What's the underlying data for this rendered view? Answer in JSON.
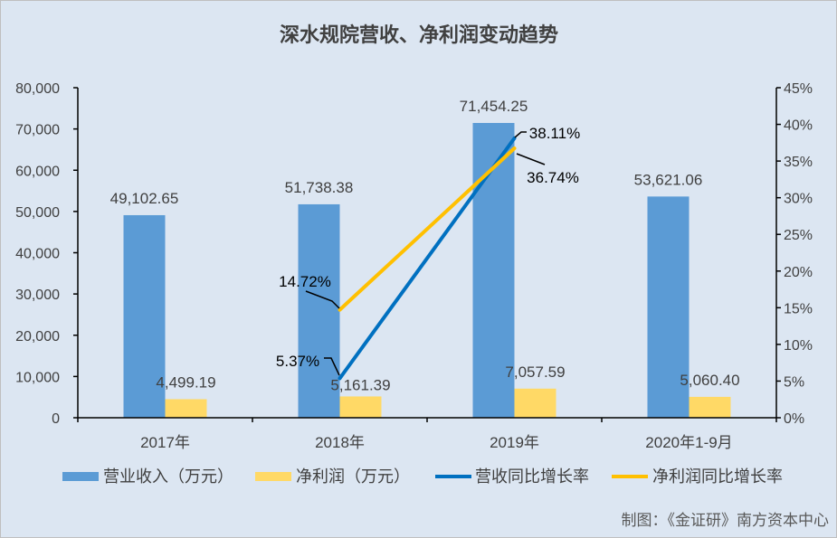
{
  "footer": "制图：《金证研》南方资本中心",
  "colors": {
    "background": "#dce6f2"
  },
  "chart_data": {
    "type": "bar",
    "title": "深水规院营收、净利润变动趋势",
    "categories": [
      "2017年",
      "2018年",
      "2019年",
      "2020年1-9月"
    ],
    "series": [
      {
        "name": "营业收入（万元）",
        "type": "bar",
        "axis": "left",
        "color": "#5b9bd5",
        "values": [
          49102.65,
          51738.38,
          71454.25,
          53621.06
        ],
        "labels": [
          "49,102.65",
          "51,738.38",
          "71,454.25",
          "53,621.06"
        ]
      },
      {
        "name": "净利润（万元）",
        "type": "bar",
        "axis": "left",
        "color": "#ffd966",
        "values": [
          4499.19,
          5161.39,
          7057.59,
          5060.4
        ],
        "labels": [
          "4,499.19",
          "5,161.39",
          "7,057.59",
          "5,060.40"
        ]
      },
      {
        "name": "营收同比增长率",
        "type": "line",
        "axis": "right",
        "color": "#0070c0",
        "values": [
          null,
          5.37,
          38.11,
          null
        ],
        "labels": [
          null,
          "5.37%",
          "38.11%",
          null
        ]
      },
      {
        "name": "净利润同比增长率",
        "type": "line",
        "axis": "right",
        "color": "#ffc000",
        "values": [
          null,
          14.72,
          36.74,
          null
        ],
        "labels": [
          null,
          "14.72%",
          "36.74%",
          null
        ]
      }
    ],
    "y_left": {
      "min": 0,
      "max": 80000,
      "step": 10000,
      "tick_labels": [
        "0",
        "10,000",
        "20,000",
        "30,000",
        "40,000",
        "50,000",
        "60,000",
        "70,000",
        "80,000"
      ]
    },
    "y_right": {
      "min": 0,
      "max": 45,
      "step": 5,
      "tick_labels": [
        "0%",
        "5%",
        "10%",
        "15%",
        "20%",
        "25%",
        "30%",
        "35%",
        "40%",
        "45%"
      ]
    },
    "grid": false,
    "legend": "bottom"
  }
}
